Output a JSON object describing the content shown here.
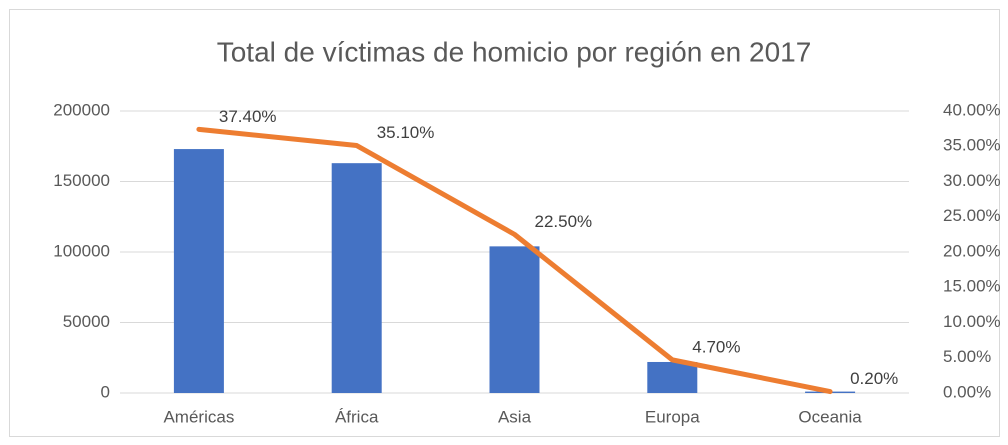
{
  "chart_data": {
    "type": "bar-line",
    "title": "Total de víctimas de homicio por región en 2017",
    "categories": [
      "Américas",
      "África",
      "Asia",
      "Europa",
      "Oceania"
    ],
    "series": [
      {
        "color": "#4472c4",
        "values": [
          173000,
          163000,
          104000,
          22000,
          1000
        ]
      },
      {
        "color": "#ed7d31",
        "axis": "y2",
        "values": [
          37.4,
          35.1,
          22.5,
          4.7,
          0.2
        ],
        "value_labels": [
          "37.40%",
          "35.10%",
          "22.50%",
          "4.70%",
          "0.20%"
        ]
      }
    ],
    "ylim": [
      0,
      200000
    ],
    "yticks": [
      0,
      50000,
      100000,
      150000,
      200000
    ],
    "y2lim": [
      0,
      40
    ],
    "y2ticks": [
      {
        "value": 0,
        "label": "0.00%"
      },
      {
        "value": 5,
        "label": "5.00%"
      },
      {
        "value": 10,
        "label": "10.00%"
      },
      {
        "value": 15,
        "label": "15.00%"
      },
      {
        "value": 20,
        "label": "20.00%"
      },
      {
        "value": 25,
        "label": "25.00%"
      },
      {
        "value": 30,
        "label": "30.00%"
      },
      {
        "value": 35,
        "label": "35.00%"
      },
      {
        "value": 40,
        "label": "40.00%"
      }
    ],
    "grid": true
  }
}
